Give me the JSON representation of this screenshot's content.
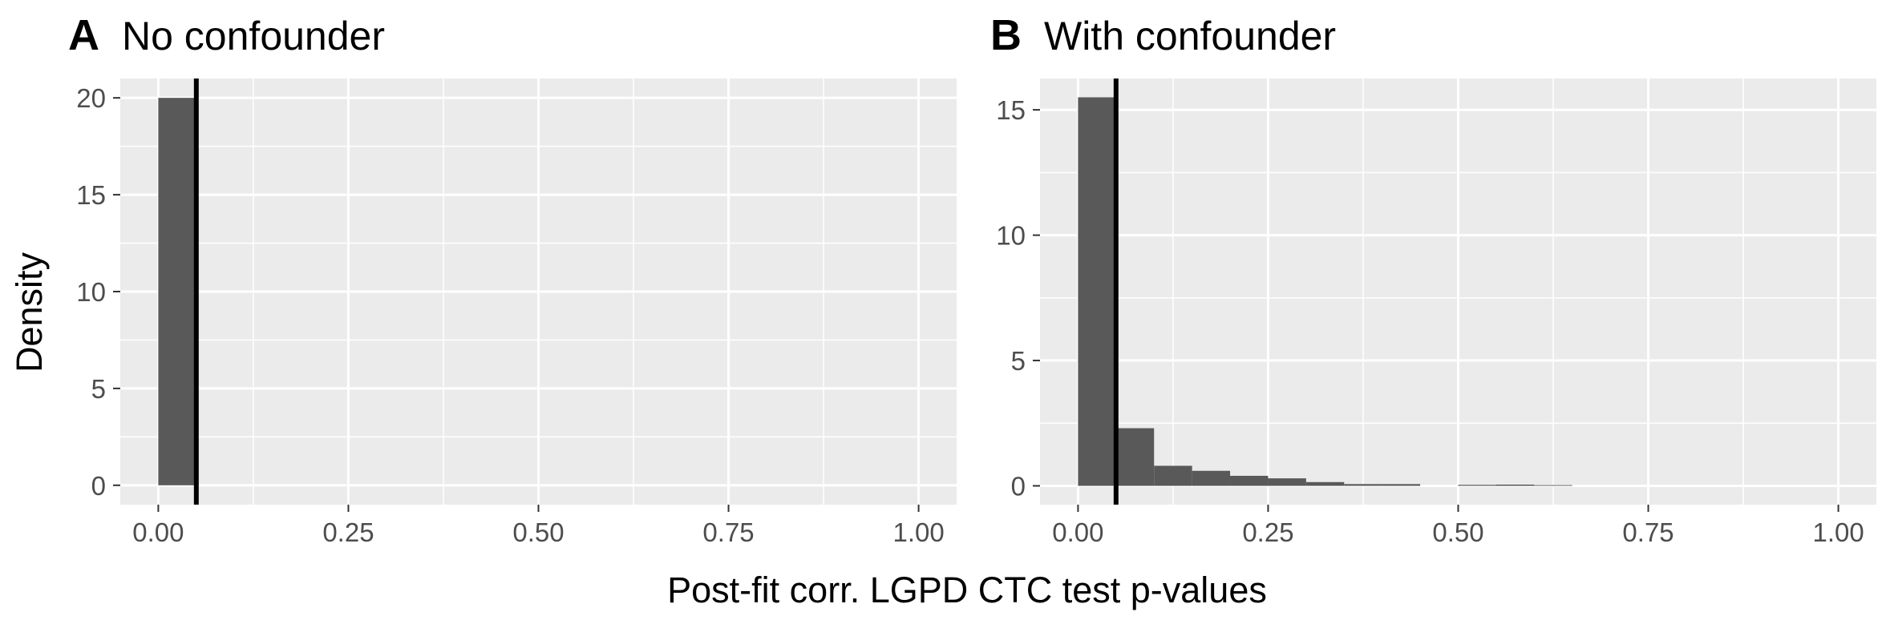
{
  "figure": {
    "xlabel": "Post-fit corr. LGPD CTC test p-values",
    "ylabel": "Density"
  },
  "colors": {
    "panel_background": "#ebebeb",
    "grid": "#ffffff",
    "bar_fill": "#595959",
    "reference_line": "#000000",
    "tick_text": "#4d4d4d"
  },
  "chart_data": [
    {
      "type": "bar",
      "panel_letter": "A",
      "title": "No confounder",
      "xlabel": "Post-fit corr. LGPD CTC test p-values",
      "ylabel": "Density",
      "xlim": [
        -0.05,
        1.05
      ],
      "ylim": [
        -1,
        21
      ],
      "x_ticks": [
        0,
        0.25,
        0.5,
        0.75,
        1
      ],
      "x_tick_labels": [
        "0.00",
        "0.25",
        "0.50",
        "0.75",
        "1.00"
      ],
      "y_ticks": [
        0,
        5,
        10,
        15,
        20
      ],
      "y_tick_labels": [
        "0",
        "5",
        "10",
        "15",
        "20"
      ],
      "bin_width": 0.05,
      "bins": [
        {
          "x0": 0.0,
          "x1": 0.05,
          "density": 20.0
        }
      ],
      "reference_line_x": 0.05,
      "grid": true,
      "legend": "none"
    },
    {
      "type": "bar",
      "panel_letter": "B",
      "title": "With confounder",
      "xlabel": "Post-fit corr. LGPD CTC test p-values",
      "ylabel": "Density",
      "xlim": [
        -0.05,
        1.05
      ],
      "ylim": [
        -0.75,
        16.25
      ],
      "x_ticks": [
        0,
        0.25,
        0.5,
        0.75,
        1
      ],
      "x_tick_labels": [
        "0.00",
        "0.25",
        "0.50",
        "0.75",
        "1.00"
      ],
      "y_ticks": [
        0,
        5,
        10,
        15
      ],
      "y_tick_labels": [
        "0",
        "5",
        "10",
        "15"
      ],
      "bin_width": 0.05,
      "bins": [
        {
          "x0": 0.0,
          "x1": 0.05,
          "density": 15.5
        },
        {
          "x0": 0.05,
          "x1": 0.1,
          "density": 2.3
        },
        {
          "x0": 0.1,
          "x1": 0.15,
          "density": 0.8
        },
        {
          "x0": 0.15,
          "x1": 0.2,
          "density": 0.6
        },
        {
          "x0": 0.2,
          "x1": 0.25,
          "density": 0.4
        },
        {
          "x0": 0.25,
          "x1": 0.3,
          "density": 0.3
        },
        {
          "x0": 0.3,
          "x1": 0.35,
          "density": 0.15
        },
        {
          "x0": 0.35,
          "x1": 0.4,
          "density": 0.07
        },
        {
          "x0": 0.4,
          "x1": 0.45,
          "density": 0.07
        },
        {
          "x0": 0.45,
          "x1": 0.5,
          "density": 0.0
        },
        {
          "x0": 0.5,
          "x1": 0.55,
          "density": 0.04
        },
        {
          "x0": 0.55,
          "x1": 0.6,
          "density": 0.05
        },
        {
          "x0": 0.6,
          "x1": 0.65,
          "density": 0.03
        }
      ],
      "reference_line_x": 0.05,
      "grid": true,
      "legend": "none"
    }
  ]
}
